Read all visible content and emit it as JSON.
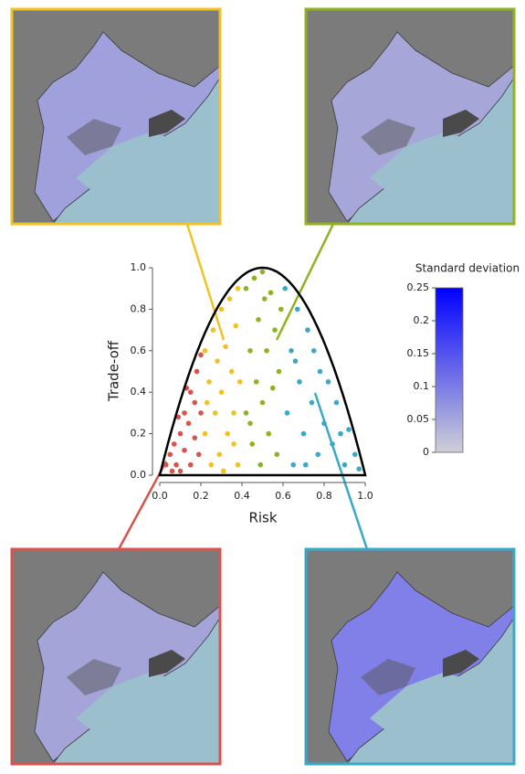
{
  "chart_data": {
    "type": "scatter",
    "x_label": "Risk",
    "y_label": "Trade-off",
    "xlim": [
      0,
      1
    ],
    "ylim": [
      0,
      1
    ],
    "xticks": [
      {
        "value": 0,
        "label": "0.0"
      },
      0.2,
      0.4,
      0.6,
      0.8,
      {
        "value": 1,
        "label": "1.0"
      }
    ],
    "yticks": [
      {
        "value": 0,
        "label": "0.0"
      },
      0.2,
      0.4,
      0.6,
      0.8,
      {
        "value": 1,
        "label": "1.0"
      }
    ],
    "series": [
      {
        "color": "#d9534c",
        "x": [
          0.03,
          0.05,
          0.07,
          0.08,
          0.1,
          0.1,
          0.12,
          0.12,
          0.14,
          0.15,
          0.15,
          0.17,
          0.17,
          0.18,
          0.19,
          0.2,
          0.2,
          0.13,
          0.09,
          0.06
        ],
        "values": [
          0.05,
          0.1,
          0.15,
          0.05,
          0.2,
          0.02,
          0.3,
          0.12,
          0.25,
          0.4,
          0.05,
          0.35,
          0.18,
          0.5,
          0.1,
          0.58,
          0.3,
          0.42,
          0.28,
          0.02
        ]
      },
      {
        "color": "#f0c224",
        "x": [
          0.22,
          0.22,
          0.24,
          0.25,
          0.26,
          0.27,
          0.28,
          0.29,
          0.3,
          0.3,
          0.32,
          0.33,
          0.34,
          0.35,
          0.36,
          0.37,
          0.38,
          0.38,
          0.39,
          0.23,
          0.31,
          0.36
        ],
        "values": [
          0.6,
          0.2,
          0.45,
          0.05,
          0.7,
          0.3,
          0.55,
          0.1,
          0.8,
          0.4,
          0.62,
          0.2,
          0.85,
          0.5,
          0.3,
          0.72,
          0.05,
          0.9,
          0.45,
          0.35,
          0.02,
          0.15
        ]
      },
      {
        "color": "#8fb21f",
        "x": [
          0.42,
          0.42,
          0.44,
          0.45,
          0.46,
          0.47,
          0.48,
          0.49,
          0.5,
          0.5,
          0.52,
          0.53,
          0.54,
          0.55,
          0.56,
          0.57,
          0.58,
          0.59,
          0.44,
          0.51
        ],
        "values": [
          0.9,
          0.3,
          0.6,
          0.15,
          0.95,
          0.45,
          0.75,
          0.05,
          0.98,
          0.35,
          0.6,
          0.2,
          0.88,
          0.42,
          0.7,
          0.1,
          0.5,
          0.8,
          0.25,
          0.85
        ]
      },
      {
        "color": "#38a9c9",
        "x": [
          0.61,
          0.62,
          0.64,
          0.65,
          0.67,
          0.68,
          0.7,
          0.72,
          0.74,
          0.75,
          0.77,
          0.78,
          0.8,
          0.82,
          0.84,
          0.86,
          0.88,
          0.9,
          0.92,
          0.95,
          0.97,
          0.66,
          0.71
        ],
        "values": [
          0.9,
          0.3,
          0.6,
          0.05,
          0.8,
          0.45,
          0.2,
          0.7,
          0.35,
          0.6,
          0.1,
          0.5,
          0.25,
          0.45,
          0.15,
          0.35,
          0.2,
          0.05,
          0.22,
          0.1,
          0.03,
          0.55,
          0.05
        ]
      }
    ]
  },
  "colorbar": {
    "title": "Standard deviation",
    "lim": [
      0,
      0.25
    ],
    "ticks": [
      0,
      0.05,
      0.1,
      0.15,
      0.2,
      0.25
    ],
    "colors": [
      "#cfcfd6",
      "#0000ff"
    ]
  }
}
